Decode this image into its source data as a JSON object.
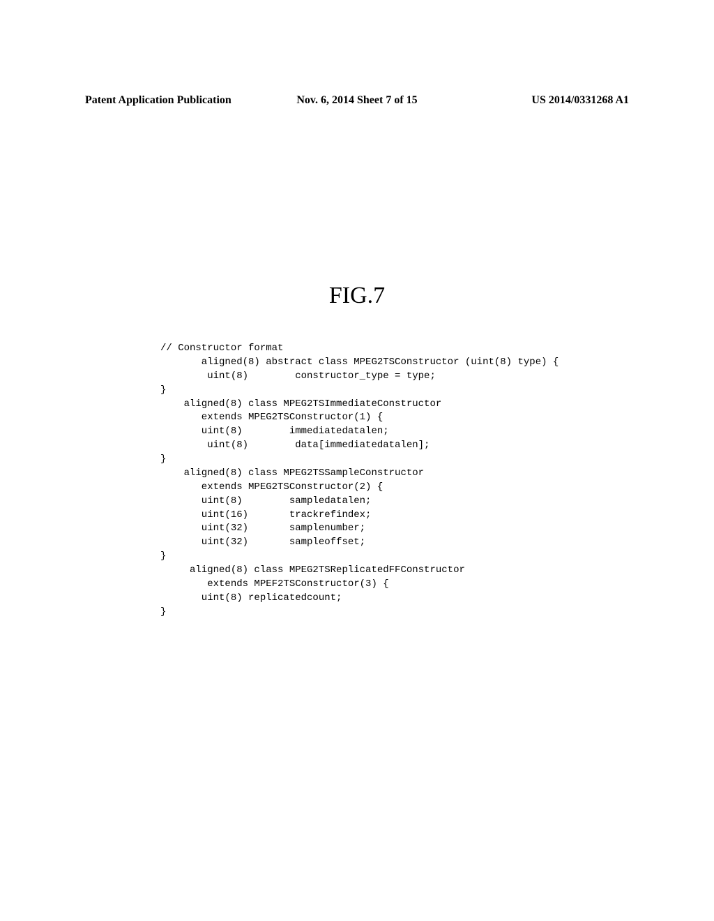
{
  "header": {
    "left": "Patent Application Publication",
    "center": "Nov. 6, 2014   Sheet 7 of 15",
    "right": "US 2014/0331268 A1"
  },
  "figure": {
    "title": "FIG.7"
  },
  "code": {
    "line01": "// Constructor format",
    "line02": "       aligned(8) abstract class MPEG2TSConstructor (uint(8) type) {",
    "line03": "        uint(8)        constructor_type = type;",
    "line04": "}",
    "line05": "    aligned(8) class MPEG2TSImmediateConstructor",
    "line06": "       extends MPEG2TSConstructor(1) {",
    "line07": "       uint(8)        immediatedatalen;",
    "line08": "        uint(8)        data[immediatedatalen];",
    "line09": "}",
    "line10": "    aligned(8) class MPEG2TSSampleConstructor",
    "line11": "       extends MPEG2TSConstructor(2) {",
    "line12": "       uint(8)        sampledatalen;",
    "line13": "       uint(16)       trackrefindex;",
    "line14": "       uint(32)       samplenumber;",
    "line15": "       uint(32)       sampleoffset;",
    "line16": "}",
    "line17": "     aligned(8) class MPEG2TSReplicatedFFConstructor",
    "line18": "        extends MPEF2TSConstructor(3) {",
    "line19": "       uint(8) replicatedcount;",
    "line20": "}"
  }
}
